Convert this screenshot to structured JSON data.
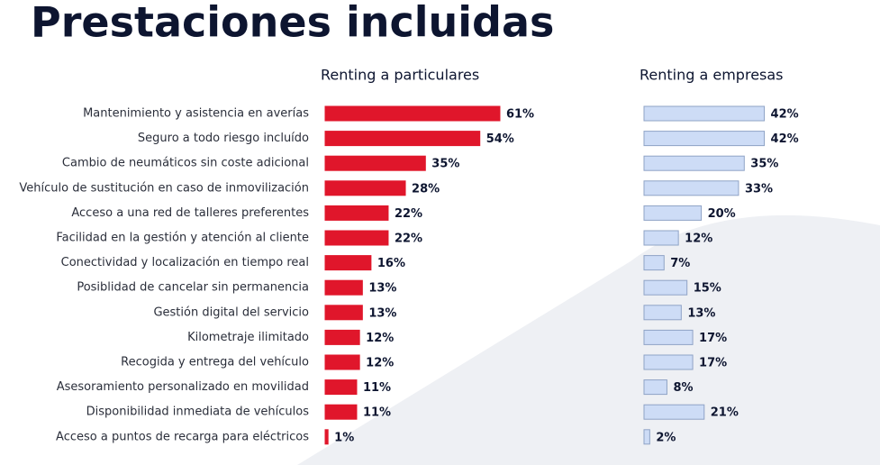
{
  "chart_data": {
    "type": "bar",
    "orientation": "horizontal",
    "title": "Prestaciones incluidas",
    "categories": [
      "Mantenimiento y asistencia en averías",
      "Seguro a todo riesgo incluído",
      "Cambio de neumáticos sin coste adicional",
      "Vehículo de sustitución en caso de inmovilización",
      "Acceso a una red de talleres preferentes",
      "Facilidad en la gestión y atención al cliente",
      "Conectividad y localización en tiempo real",
      "Posiblidad de cancelar sin permanencia",
      "Gestión digital del servicio",
      "Kilometraje ilimitado",
      "Recogida y entrega del vehículo",
      "Asesoramiento personalizado en movilidad",
      "Disponibilidad inmediata de vehículos",
      "Acceso a puntos de recarga para eléctricos"
    ],
    "series": [
      {
        "name": "Renting a particulares",
        "color": "#e0162b",
        "edge_color": "#e0162b",
        "values": [
          61,
          54,
          35,
          28,
          22,
          22,
          16,
          13,
          13,
          12,
          12,
          11,
          11,
          1
        ],
        "value_labels": [
          "61%",
          "54%",
          "35%",
          "28%",
          "22%",
          "22%",
          "16%",
          "13%",
          "13%",
          "12%",
          "12%",
          "11%",
          "11%",
          "1%"
        ]
      },
      {
        "name": "Renting a empresas",
        "color": "#cddcf6",
        "edge_color": "#8fa3c6",
        "values": [
          42,
          42,
          35,
          33,
          20,
          12,
          7,
          15,
          13,
          17,
          17,
          8,
          21,
          2
        ],
        "value_labels": [
          "42%",
          "42%",
          "35%",
          "33%",
          "20%",
          "12%",
          "7%",
          "15%",
          "13%",
          "17%",
          "17%",
          "8%",
          "21%",
          "2%"
        ]
      }
    ]
  }
}
